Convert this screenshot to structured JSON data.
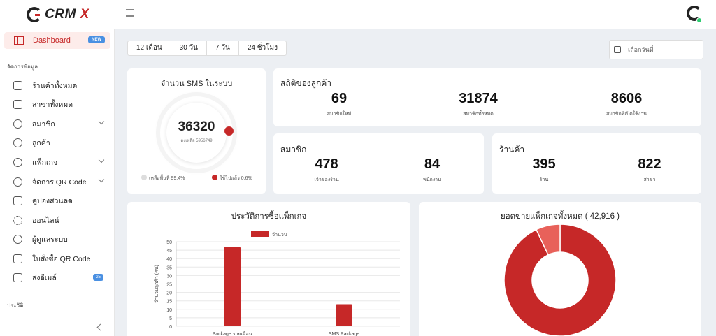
{
  "app": {
    "logo_text": "CRM",
    "logo_x": "X"
  },
  "sidebar": {
    "active": {
      "label": "Dashboard",
      "badge": "NEW"
    },
    "section_manage": "จัดการข้อมูล",
    "items": [
      {
        "label": "ร้านค้าทั้งหมด",
        "icon": "store-icon"
      },
      {
        "label": "สาขาทั้งหมด",
        "icon": "layers-icon"
      },
      {
        "label": "สมาชิก",
        "icon": "users-icon"
      },
      {
        "label": "ลูกค้า",
        "icon": "user-icon"
      },
      {
        "label": "แพ็กเกจ",
        "icon": "package-icon"
      },
      {
        "label": "จัดการ QR Code",
        "icon": "users-icon"
      },
      {
        "label": "คูปองส่วนลด",
        "icon": "gift-icon"
      },
      {
        "label": "ออนไลน์",
        "icon": "sun-icon"
      },
      {
        "label": "ผู้ดูแลระบบ",
        "icon": "user-plus-icon"
      },
      {
        "label": "ใบสั่งซื้อ QR Code",
        "icon": "document-icon"
      },
      {
        "label": "ส่งอีเมล์",
        "icon": "document-icon",
        "badge": "25"
      }
    ],
    "section_history": "ประวัติ"
  },
  "tabs": [
    "12 เดือน",
    "30 วัน",
    "7 วัน",
    "24 ชั่วโมง"
  ],
  "datepicker": {
    "placeholder": "เลือกวันที่"
  },
  "sms": {
    "title": "จำนวน SMS ในระบบ",
    "value": "36320",
    "remaining": "คงเหลือ 5956749",
    "legend_left": "เหลือพื้นที่ 99.4%",
    "legend_right": "ใช้ไปแล้ว 0.6%"
  },
  "customer_stats": {
    "title": "สถิติของลูกค้า",
    "items": [
      {
        "value": "69",
        "label": "สมาชิกใหม่"
      },
      {
        "value": "31874",
        "label": "สมาชิกทั้งหมด"
      },
      {
        "value": "8606",
        "label": "สมาชิกที่เปิดใช้งาน"
      }
    ]
  },
  "members": {
    "title": "สมาชิก",
    "items": [
      {
        "value": "478",
        "label": "เจ้าของร้าน"
      },
      {
        "value": "84",
        "label": "พนักงาน"
      }
    ]
  },
  "stores": {
    "title": "ร้านค้า",
    "items": [
      {
        "value": "395",
        "label": "ร้าน"
      },
      {
        "value": "822",
        "label": "สาขา"
      }
    ]
  },
  "purchase_history": {
    "title": "ประวัติการซื้อแพ็กเกจ"
  },
  "sales": {
    "title": "ยอดขายแพ็กเกจทั้งหมด ( 42,916 )"
  },
  "colors": {
    "primary": "#c62828",
    "secondary": "#e8615a",
    "blue_badge": "#4a90e2"
  },
  "chart_data": [
    {
      "type": "bar",
      "title": "ประวัติการซื้อแพ็กเกจ",
      "categories": [
        "Package รายเดือน",
        "SMS Package"
      ],
      "series": [
        {
          "name": "จำนวน",
          "values": [
            47,
            13
          ]
        }
      ],
      "ylabel": "จำนวนลูกค้า (คน)",
      "ylim": [
        0,
        50
      ],
      "yticks": [
        0,
        5,
        10,
        15,
        20,
        25,
        30,
        35,
        40,
        45,
        50
      ],
      "legend": "top",
      "grid": true
    },
    {
      "type": "pie",
      "title": "ยอดขายแพ็กเกจทั้งหมด ( 42,916 )",
      "variant": "donut",
      "values": [
        93,
        7
      ],
      "colors": [
        "#c62828",
        "#e8615a"
      ]
    }
  ]
}
